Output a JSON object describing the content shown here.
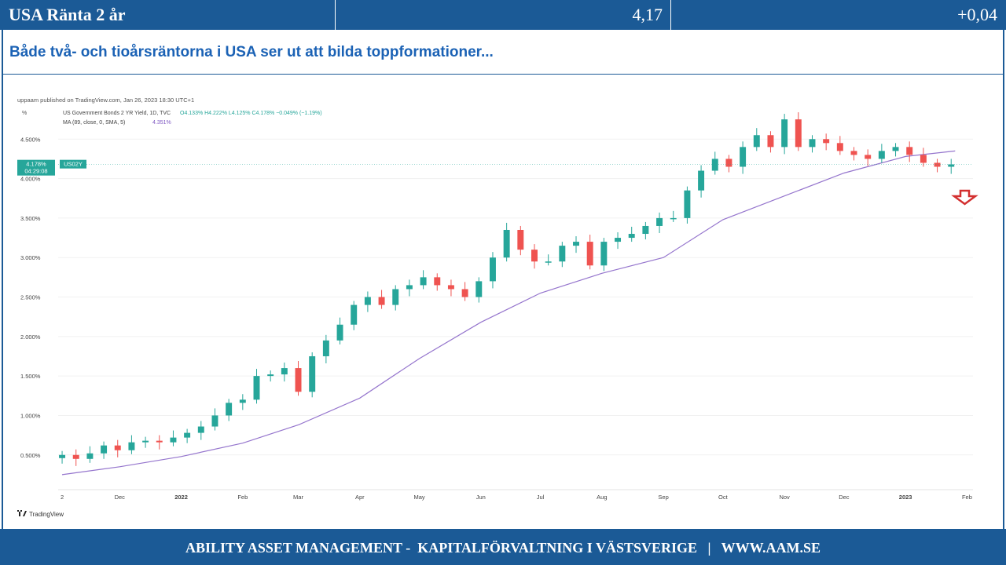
{
  "header": {
    "title": "USA Ränta 2 år",
    "value": "4,17",
    "change": "+0,04"
  },
  "headline": "Både två- och tioårsräntorna i USA ser ut att bilda toppformationer...",
  "chart_data": {
    "type": "candlestick",
    "published": "uppaam published on TradingView.com, Jan 26, 2023 18:30 UTC+1",
    "unit_label": "%",
    "legend_series": "US Government Bonds 2 YR Yield, 1D, TVC",
    "legend_ohlc": "O4.133%  H4.222%  L4.125%  C4.178%  −0.049% (−1.19%)",
    "legend_ma": "MA (89, close, 0, SMA, 5)",
    "legend_ma_value": "4.351%",
    "price_tag_value": "4.178%",
    "price_tag_time": "04:29:08",
    "symbol_tag": "US02Y",
    "brand": "TradingView",
    "y_ticks": [
      "4.500%",
      "4.000%",
      "3.500%",
      "3.000%",
      "2.500%",
      "2.000%",
      "1.500%",
      "1.000%",
      "0.500%"
    ],
    "y_tick_values": [
      4.5,
      4.0,
      3.5,
      3.0,
      2.5,
      2.0,
      1.5,
      1.0,
      0.5
    ],
    "ylim": [
      0.1,
      4.95
    ],
    "x_ticks": [
      "2",
      "Dec",
      "2022",
      "Feb",
      "Mar",
      "Apr",
      "May",
      "Jun",
      "Jul",
      "Aug",
      "Sep",
      "Oct",
      "Nov",
      "Dec",
      "2023",
      "Feb"
    ],
    "x_tick_dates": [
      "2021-11-02",
      "2021-12-01",
      "2022-01-01",
      "2022-02-01",
      "2022-03-01",
      "2022-04-01",
      "2022-05-01",
      "2022-06-01",
      "2022-07-01",
      "2022-08-01",
      "2022-09-01",
      "2022-10-01",
      "2022-11-01",
      "2022-12-01",
      "2023-01-01",
      "2023-02-01"
    ],
    "x_range": [
      "2021-10-31",
      "2023-02-04"
    ],
    "close_series": {
      "name": "US Government Bonds 2 YR Yield",
      "up_color": "#26a69a",
      "down_color": "#ef5350",
      "dates": [
        "2021-11-02",
        "2021-11-09",
        "2021-11-16",
        "2021-11-23",
        "2021-11-30",
        "2021-12-07",
        "2021-12-14",
        "2021-12-21",
        "2021-12-28",
        "2022-01-04",
        "2022-01-11",
        "2022-01-18",
        "2022-01-25",
        "2022-02-01",
        "2022-02-08",
        "2022-02-15",
        "2022-02-22",
        "2022-03-01",
        "2022-03-08",
        "2022-03-15",
        "2022-03-22",
        "2022-03-29",
        "2022-04-05",
        "2022-04-12",
        "2022-04-19",
        "2022-04-26",
        "2022-05-03",
        "2022-05-10",
        "2022-05-17",
        "2022-05-24",
        "2022-05-31",
        "2022-06-07",
        "2022-06-14",
        "2022-06-21",
        "2022-06-28",
        "2022-07-05",
        "2022-07-12",
        "2022-07-19",
        "2022-07-26",
        "2022-08-02",
        "2022-08-09",
        "2022-08-16",
        "2022-08-23",
        "2022-08-30",
        "2022-09-06",
        "2022-09-13",
        "2022-09-20",
        "2022-09-27",
        "2022-10-04",
        "2022-10-11",
        "2022-10-18",
        "2022-10-25",
        "2022-11-01",
        "2022-11-08",
        "2022-11-15",
        "2022-11-22",
        "2022-11-29",
        "2022-12-06",
        "2022-12-13",
        "2022-12-20",
        "2022-12-27",
        "2023-01-03",
        "2023-01-10",
        "2023-01-17",
        "2023-01-24"
      ],
      "values": [
        0.5,
        0.45,
        0.52,
        0.62,
        0.56,
        0.66,
        0.68,
        0.66,
        0.72,
        0.78,
        0.86,
        1.0,
        1.16,
        1.2,
        1.5,
        1.52,
        1.6,
        1.3,
        1.75,
        1.95,
        2.15,
        2.4,
        2.5,
        2.4,
        2.6,
        2.65,
        2.75,
        2.65,
        2.6,
        2.5,
        2.7,
        3.0,
        3.35,
        3.1,
        2.95,
        2.95,
        3.15,
        3.2,
        2.9,
        3.2,
        3.25,
        3.3,
        3.4,
        3.5,
        3.5,
        3.85,
        4.1,
        4.25,
        4.15,
        4.4,
        4.55,
        4.4,
        4.75,
        4.4,
        4.5,
        4.45,
        4.35,
        4.3,
        4.25,
        4.35,
        4.4,
        4.3,
        4.2,
        4.15,
        4.18
      ]
    },
    "ma_series": {
      "name": "MA (89, close, 0, SMA, 5)",
      "color": "#9575cd",
      "dates": [
        "2021-11-02",
        "2021-12-01",
        "2022-01-01",
        "2022-02-01",
        "2022-03-01",
        "2022-04-01",
        "2022-05-01",
        "2022-06-01",
        "2022-07-01",
        "2022-08-01",
        "2022-09-01",
        "2022-10-01",
        "2022-11-01",
        "2022-12-01",
        "2023-01-01",
        "2023-01-26"
      ],
      "values": [
        0.25,
        0.35,
        0.48,
        0.65,
        0.88,
        1.22,
        1.72,
        2.18,
        2.55,
        2.8,
        3.0,
        3.48,
        3.78,
        4.07,
        4.28,
        4.35
      ]
    },
    "annotation": "down-arrow"
  }
}
